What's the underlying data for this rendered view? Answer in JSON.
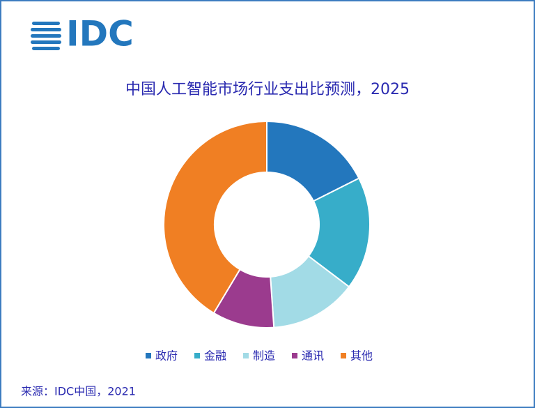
{
  "logo": "IDC",
  "chart_data": {
    "type": "donut",
    "title": "中国人工智能市场行业支出比预测，2025",
    "categories": [
      "政府",
      "金融",
      "制造",
      "通讯",
      "其他"
    ],
    "values": [
      17.6,
      17.7,
      13.6,
      9.7,
      41.4
    ],
    "colors": [
      "#2377bd",
      "#37adc9",
      "#a2dbe6",
      "#9b3b8e",
      "#f07f23"
    ]
  },
  "source": "来源：IDC中国，2021"
}
